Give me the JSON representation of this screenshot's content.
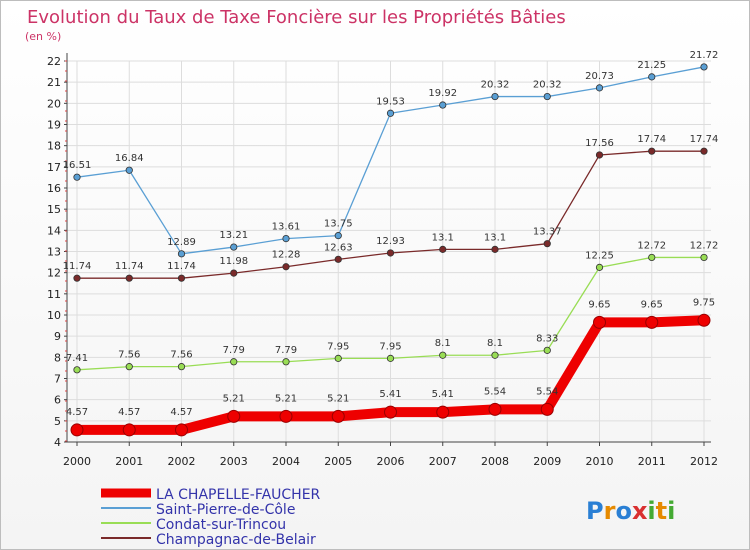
{
  "chart_data": {
    "type": "line",
    "title": "Evolution du Taux de Taxe Foncière sur les Propriétés Bâties",
    "unit_label": "(en %)",
    "x": [
      "2000",
      "2001",
      "2002",
      "2003",
      "2004",
      "2005",
      "2006",
      "2007",
      "2008",
      "2009",
      "2010",
      "2011",
      "2012"
    ],
    "ylim": [
      4,
      22
    ],
    "yticks": [
      4,
      5,
      6,
      7,
      8,
      9,
      10,
      11,
      12,
      13,
      14,
      15,
      16,
      17,
      18,
      19,
      20,
      21,
      22
    ],
    "grid": true,
    "legend_position": "bottom-left",
    "series": [
      {
        "name": "LA CHAPELLE-FAUCHER",
        "color": "#ee0000",
        "values": [
          4.57,
          4.57,
          4.57,
          5.21,
          5.21,
          5.21,
          5.41,
          5.41,
          5.54,
          5.54,
          9.65,
          9.65,
          9.75
        ],
        "labels": [
          "4.57",
          "4.57",
          "4.57",
          "5.21",
          "5.21",
          "5.21",
          "5.41",
          "5.41",
          "5.54",
          "5.54",
          "9.65",
          "9.65",
          "9.75"
        ]
      },
      {
        "name": "Saint-Pierre-de-Côle",
        "color": "#5a9fd4",
        "values": [
          16.51,
          16.84,
          12.89,
          13.21,
          13.61,
          13.75,
          19.53,
          19.92,
          20.32,
          20.32,
          20.73,
          21.25,
          21.72
        ],
        "labels": [
          "16.51",
          "16.84",
          "12.89",
          "13.21",
          "13.61",
          "13.75",
          "19.53",
          "19.92",
          "20.32",
          "20.32",
          "20.73",
          "21.25",
          "21.72"
        ]
      },
      {
        "name": "Condat-sur-Trincou",
        "color": "#99dd55",
        "values": [
          7.41,
          7.56,
          7.56,
          7.79,
          7.79,
          7.95,
          7.95,
          8.1,
          8.1,
          8.33,
          12.25,
          12.72,
          12.72
        ],
        "labels": [
          "7.41",
          "7.56",
          "7.56",
          "7.79",
          "7.79",
          "7.95",
          "7.95",
          "8.1",
          "8.1",
          "8.33",
          "12.25",
          "12.72",
          "12.72"
        ]
      },
      {
        "name": "Champagnac-de-Belair",
        "color": "#7a2a2a",
        "values": [
          11.74,
          11.74,
          11.74,
          11.98,
          12.28,
          12.63,
          12.93,
          13.1,
          13.1,
          13.37,
          17.56,
          17.74,
          17.74
        ],
        "labels": [
          "11.74",
          "11.74",
          "11.74",
          "11.98",
          "12.28",
          "12.63",
          "12.93",
          "13.1",
          "13.1",
          "13.37",
          "17.56",
          "17.74",
          "17.74"
        ]
      }
    ]
  },
  "logo": {
    "text": "Proxiti",
    "letters": [
      "P",
      "r",
      "o",
      "x",
      "i",
      "t",
      "i"
    ],
    "colors": [
      "#2a7fd4",
      "#e68a00",
      "#2a7fd4",
      "#d93030",
      "#44aa33",
      "#e68a00",
      "#44aa33"
    ]
  }
}
